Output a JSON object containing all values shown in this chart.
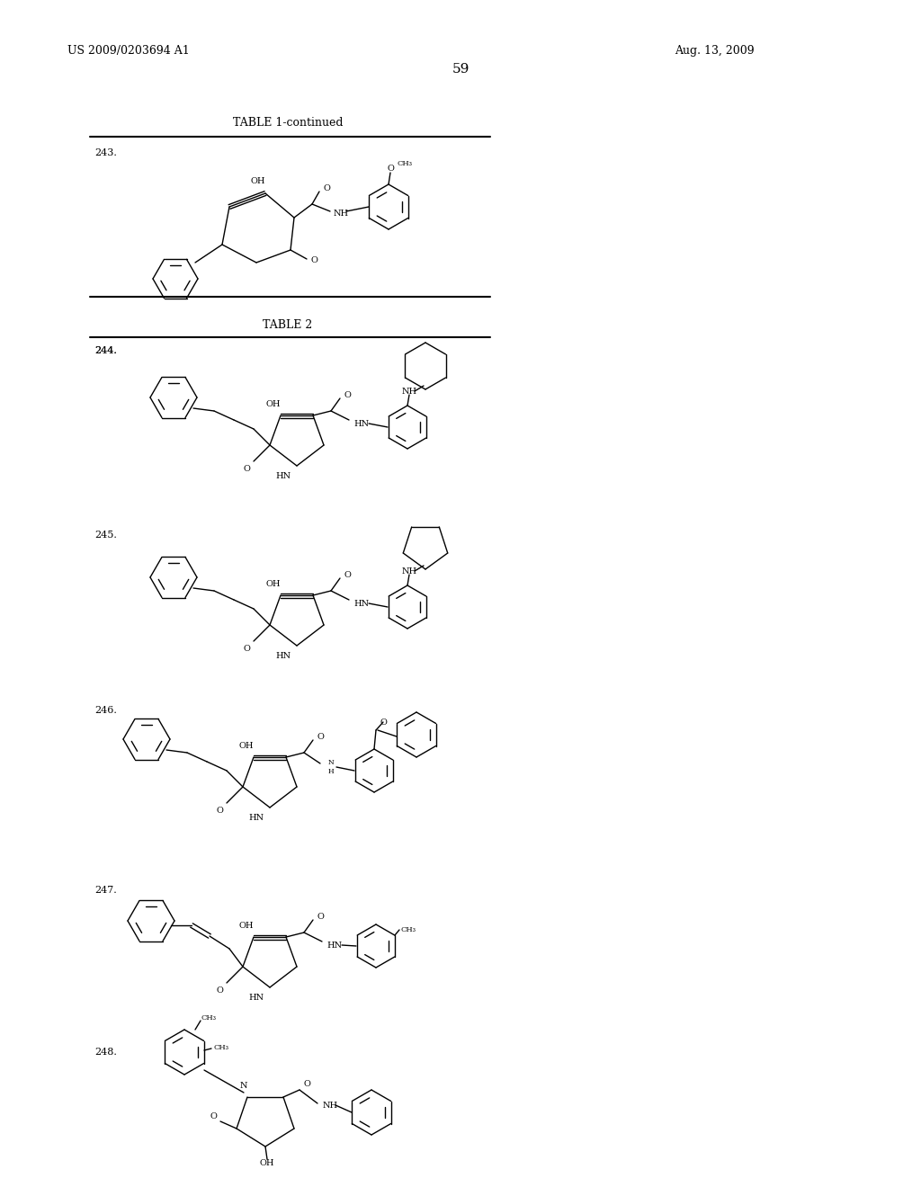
{
  "page_number": "59",
  "patent_number": "US 2009/0203694 A1",
  "patent_date": "Aug. 13, 2009",
  "background_color": "#ffffff",
  "table1_title": "TABLE 1-continued",
  "table2_title": "TABLE 2",
  "line_color": "#000000",
  "font_size_header": 9,
  "font_size_page_num": 11,
  "font_size_label": 8,
  "font_size_atom": 7,
  "font_size_table": 9
}
